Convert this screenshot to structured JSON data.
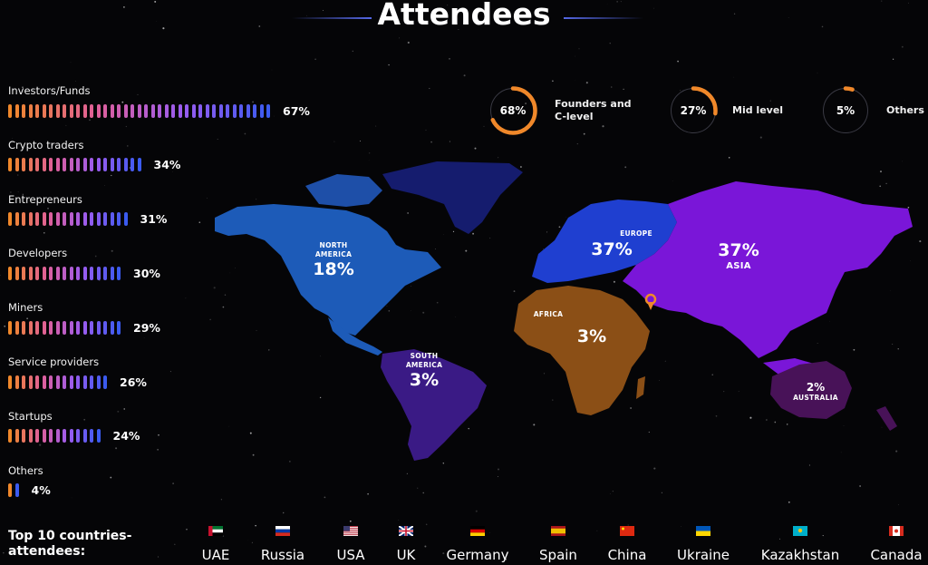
{
  "title": "Attendees",
  "chart_data": [
    {
      "type": "bar",
      "categories": [
        "Investors/Funds",
        "Crypto traders",
        "Entrepreneurs",
        "Developers",
        "Miners",
        "Service providers",
        "Startups",
        "Others"
      ],
      "values": [
        67,
        34,
        31,
        30,
        29,
        26,
        24,
        4
      ],
      "value_labels": [
        "67%",
        "34%",
        "31%",
        "30%",
        "29%",
        "26%",
        "24%",
        "4%"
      ]
    },
    {
      "type": "pie",
      "categories": [
        "Founders and C-level",
        "Mid level",
        "Others"
      ],
      "values": [
        68,
        27,
        5
      ],
      "value_labels": [
        "68%",
        "27%",
        "5%"
      ]
    },
    {
      "type": "map",
      "categories": [
        "NORTH AMERICA",
        "SOUTH AMERICA",
        "EUROPE",
        "ASIA",
        "AFRICA",
        "AUSTRALIA"
      ],
      "values": [
        18,
        3,
        37,
        37,
        3,
        2
      ],
      "value_labels": [
        "18%",
        "3%",
        "37%",
        "37%",
        "3%",
        "2%"
      ]
    }
  ],
  "colors": {
    "orange": "#f0882a",
    "pink": "#e05f9a",
    "violet": "#9a5cf0",
    "blue": "#3b5bf0"
  },
  "countries": {
    "title": "Top 10 countries-\nattendees:",
    "items": [
      {
        "name": "UAE",
        "flag": "uae-flag-icon"
      },
      {
        "name": "Russia",
        "flag": "russia-flag-icon"
      },
      {
        "name": "USA",
        "flag": "usa-flag-icon"
      },
      {
        "name": "UK",
        "flag": "uk-flag-icon"
      },
      {
        "name": "Germany",
        "flag": "germany-flag-icon"
      },
      {
        "name": "Spain",
        "flag": "spain-flag-icon"
      },
      {
        "name": "China",
        "flag": "china-flag-icon"
      },
      {
        "name": "Ukraine",
        "flag": "ukraine-flag-icon"
      },
      {
        "name": "Kazakhstan",
        "flag": "kazakhstan-flag-icon"
      },
      {
        "name": "Canada",
        "flag": "canada-flag-icon"
      }
    ]
  }
}
